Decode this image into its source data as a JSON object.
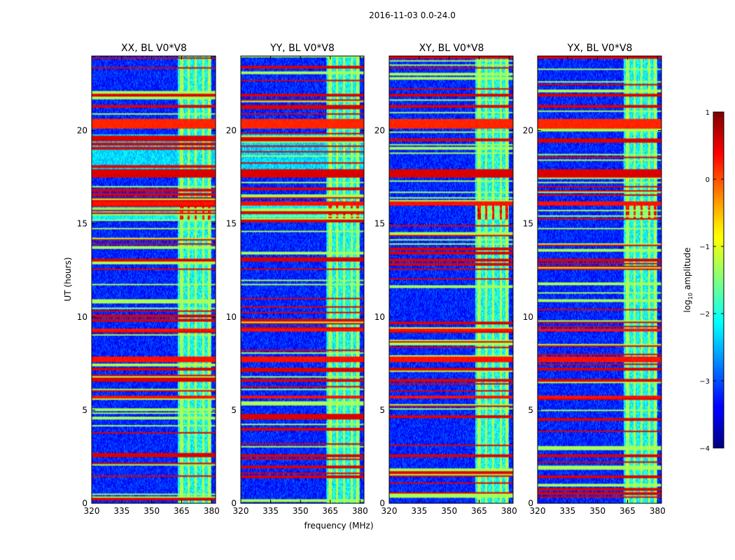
{
  "chart_data": {
    "type": "heatmap",
    "title": "2016-11-03 0.0-24.0",
    "xlabel": "frequency (MHz)",
    "ylabel": "UT (hours)",
    "xlim": [
      320,
      382
    ],
    "ylim": [
      0,
      24
    ],
    "xticks": [
      320,
      335,
      350,
      365,
      380
    ],
    "yticks": [
      0,
      5,
      10,
      15,
      20
    ],
    "panels": [
      {
        "title": "XX, BL V0*V8",
        "cross": false
      },
      {
        "title": "YY, BL V0*V8",
        "cross": false
      },
      {
        "title": "XY, BL V0*V8",
        "cross": true
      },
      {
        "title": "YX, BL V0*V8",
        "cross": true
      }
    ],
    "colorbar": {
      "label": "log",
      "label_sub": "10",
      "label_rest": " amplitude",
      "range": [
        -4,
        1
      ],
      "ticks": [
        -4,
        -3,
        -2,
        -1,
        0,
        1
      ],
      "tick_labels": [
        "−4",
        "−3",
        "−2",
        "−1",
        "0",
        "1"
      ],
      "colormap": "jet"
    },
    "rfi_band_mhz": [
      363,
      380
    ],
    "rfi_channels_mhz": [
      [
        364.0,
        366.0
      ],
      [
        368.0,
        369.0
      ],
      [
        371.5,
        372.5
      ],
      [
        375.5,
        376.5
      ],
      [
        378.0,
        379.5
      ]
    ],
    "flagged_time_bands_hours": [
      [
        20.1,
        20.6,
        0.2
      ],
      [
        16.0,
        16.2,
        0.3
      ],
      [
        9.2,
        9.35,
        0.3
      ],
      [
        7.6,
        7.85,
        0.3
      ],
      [
        5.6,
        5.75,
        0.3
      ],
      [
        19.4,
        19.55,
        0.55
      ],
      [
        17.5,
        17.9,
        0.55
      ],
      [
        21.2,
        21.4,
        0.55
      ],
      [
        21.8,
        22.0,
        0.55
      ],
      [
        7.1,
        7.3,
        0.55
      ],
      [
        6.5,
        6.7,
        0.55
      ],
      [
        12.5,
        12.6,
        0.55
      ],
      [
        13.0,
        13.1,
        0.55
      ],
      [
        1.4,
        1.5,
        0.55
      ],
      [
        2.5,
        2.6,
        0.55
      ]
    ],
    "elevated_time_bands_hours": [
      [
        15.2,
        16.0,
        -2.1
      ],
      [
        17.9,
        19.8,
        -2.3
      ]
    ]
  }
}
